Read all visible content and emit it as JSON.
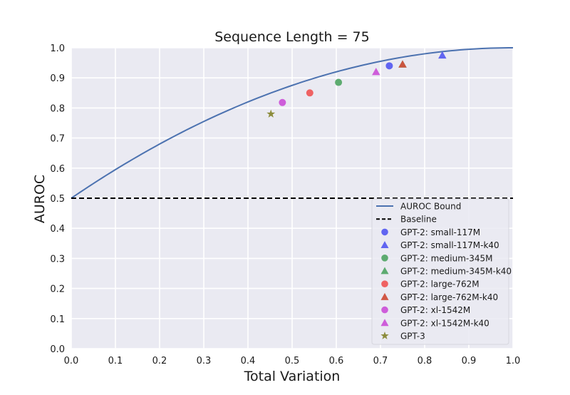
{
  "chart_data": {
    "type": "scatter",
    "title": "Sequence Length = 75",
    "xlabel": "Total Variation",
    "ylabel": "AUROC",
    "xlim": [
      0.0,
      1.0
    ],
    "ylim": [
      0.0,
      1.0
    ],
    "xticks": [
      "0.0",
      "0.1",
      "0.2",
      "0.3",
      "0.4",
      "0.5",
      "0.6",
      "0.7",
      "0.8",
      "0.9",
      "1.0"
    ],
    "yticks": [
      "0.0",
      "0.1",
      "0.2",
      "0.3",
      "0.4",
      "0.5",
      "0.6",
      "0.7",
      "0.8",
      "0.9",
      "1.0"
    ],
    "grid": true,
    "background": "#eaeaf2",
    "legend_position": "lower-right",
    "lines": [
      {
        "name": "AUROC Bound",
        "style": "solid",
        "color": "#4c72b0",
        "formula": "0.5 + TV - TV^2/2"
      },
      {
        "name": "Baseline",
        "style": "dashed",
        "color": "#000000",
        "y": 0.5
      }
    ],
    "series": [
      {
        "name": "GPT-2: small-117M",
        "marker": "circle",
        "color": "#5a5ef0",
        "x": 0.72,
        "y": 0.94
      },
      {
        "name": "GPT-2: small-117M-k40",
        "marker": "triangle",
        "color": "#5a5ef0",
        "x": 0.84,
        "y": 0.975
      },
      {
        "name": "GPT-2: medium-345M",
        "marker": "circle",
        "color": "#55a868",
        "x": 0.605,
        "y": 0.885
      },
      {
        "name": "GPT-2: medium-345M-k40",
        "marker": "triangle",
        "color": "#55a868",
        "x": 0.75,
        "y": 0.945
      },
      {
        "name": "GPT-2: large-762M",
        "marker": "circle",
        "color": "#ef5b5b",
        "x": 0.54,
        "y": 0.85
      },
      {
        "name": "GPT-2: large-762M-k40",
        "marker": "triangle",
        "color": "#d0503c",
        "x": 0.75,
        "y": 0.945
      },
      {
        "name": "GPT-2: xl-1542M",
        "marker": "circle",
        "color": "#cc55d8",
        "x": 0.478,
        "y": 0.818
      },
      {
        "name": "GPT-2: xl-1542M-k40",
        "marker": "triangle",
        "color": "#cc55d8",
        "x": 0.69,
        "y": 0.92
      },
      {
        "name": "GPT-3",
        "marker": "star",
        "color": "#8c8c3c",
        "x": 0.452,
        "y": 0.78
      }
    ]
  }
}
